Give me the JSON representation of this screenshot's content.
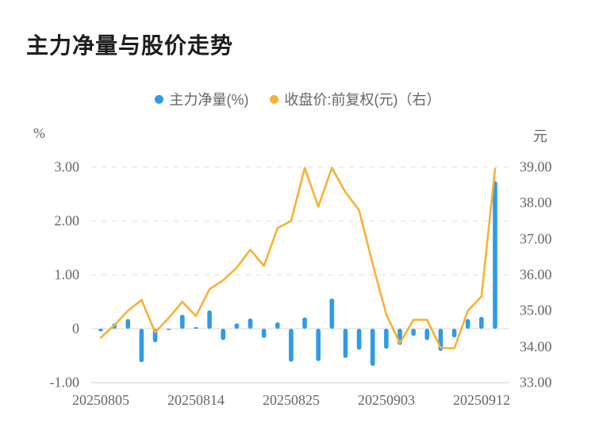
{
  "title": "主力净量与股价走势",
  "legend": [
    {
      "label": "主力净量(%)",
      "color": "#2f9be8",
      "icon": "dot"
    },
    {
      "label": "收盘价:前复权(元)（右）",
      "color": "#fbb034",
      "icon": "dot"
    }
  ],
  "left_axis": {
    "unit": "%",
    "ticks": [
      "3.00",
      "2.00",
      "1.00",
      "0",
      "-1.00"
    ]
  },
  "right_axis": {
    "unit": "元",
    "ticks": [
      "39.00",
      "38.00",
      "37.00",
      "36.00",
      "35.00",
      "34.00",
      "33.00"
    ]
  },
  "x_axis": {
    "tick_labels": [
      "20250805",
      "20250814",
      "20250825",
      "20250903",
      "20250912"
    ],
    "tick_indices": [
      0,
      7,
      14,
      21,
      28
    ]
  },
  "colors": {
    "bar_blue": "#2f9be8",
    "line_yellow": "#fbb034",
    "grid": "#e4e4e4",
    "zero_line": "#ececec",
    "axis_line": "#dfdfdf",
    "label_gray": "#62666b",
    "title_black": "#1d1d1d"
  },
  "chart_data": {
    "type": "bar",
    "subtype": "combo-bar-line-dual-axis",
    "title": "主力净量与股价走势",
    "categories_note": "30 consecutive trading days, first=20250805, last bar after 20250912 tick",
    "x_tick_labels": [
      "20250805",
      "20250814",
      "20250825",
      "20250903",
      "20250912"
    ],
    "x_tick_indices": [
      0,
      7,
      14,
      21,
      28
    ],
    "series": [
      {
        "name": "主力净量(%)",
        "type": "bar",
        "axis": "left",
        "color": "#2f9be8",
        "values": [
          -0.05,
          0.1,
          0.18,
          -0.62,
          -0.25,
          -0.02,
          0.26,
          0.03,
          0.34,
          -0.21,
          0.1,
          0.19,
          -0.17,
          0.12,
          -0.61,
          0.21,
          -0.6,
          0.56,
          -0.54,
          -0.39,
          -0.69,
          -0.37,
          -0.3,
          -0.13,
          -0.21,
          -0.41,
          -0.16,
          0.18,
          0.22,
          2.74
        ]
      },
      {
        "name": "收盘价:前复权(元)（右）",
        "type": "line",
        "axis": "right",
        "color": "#fbb034",
        "values": [
          34.25,
          34.6,
          35.0,
          35.3,
          34.4,
          34.8,
          35.25,
          34.85,
          35.6,
          35.85,
          36.2,
          36.7,
          36.25,
          37.3,
          37.5,
          38.98,
          37.9,
          38.98,
          38.3,
          37.8,
          36.3,
          34.9,
          34.1,
          34.75,
          34.75,
          33.97,
          33.95,
          35.0,
          35.4,
          38.95
        ]
      }
    ],
    "left_ylim": [
      -1.0,
      3.0
    ],
    "right_ylim": [
      33.0,
      39.0
    ],
    "left_yticks": [
      3.0,
      2.0,
      1.0,
      0,
      -1.0
    ],
    "right_yticks": [
      39.0,
      38.0,
      37.0,
      36.0,
      35.0,
      34.0,
      33.0
    ],
    "grid": "horizontal dashed at left ticks 1.00/2.00/3.00, solid light zero line, solid bottom axis",
    "legend_position": "top-center"
  }
}
